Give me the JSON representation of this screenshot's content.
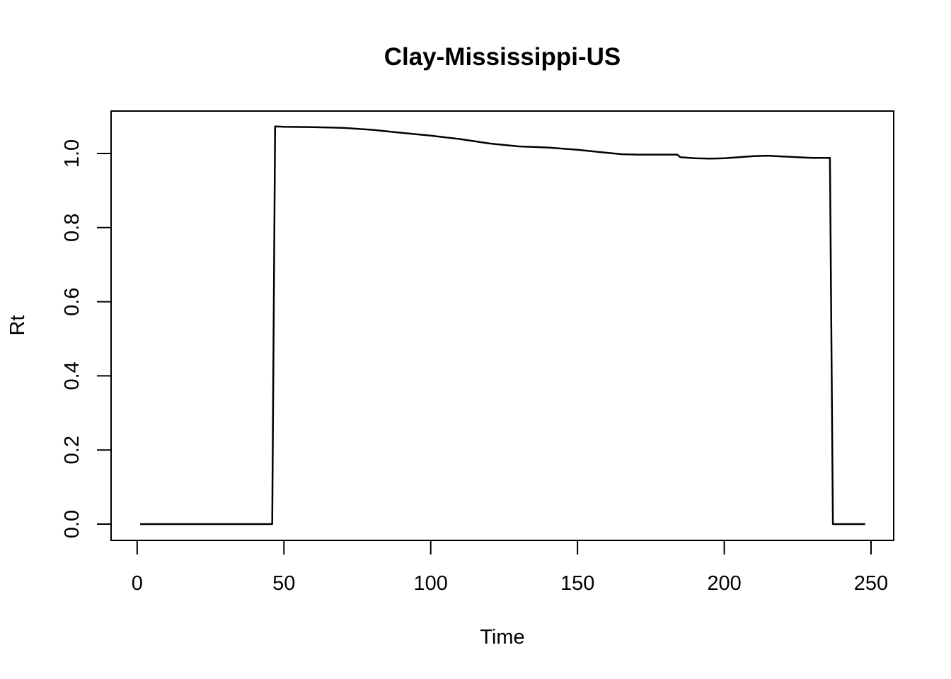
{
  "chart_data": {
    "type": "line",
    "title": "Clay-Mississippi-US",
    "xlabel": "Time",
    "ylabel": "Rt",
    "xlim": [
      1,
      248
    ],
    "ylim": [
      0,
      1.07
    ],
    "xticks": [
      0,
      50,
      100,
      150,
      200,
      250
    ],
    "yticks": [
      0.0,
      0.2,
      0.4,
      0.6,
      0.8,
      1.0
    ],
    "xtick_labels": [
      "0",
      "50",
      "100",
      "150",
      "200",
      "250"
    ],
    "ytick_labels": [
      "0.0",
      "0.2",
      "0.4",
      "0.6",
      "0.8",
      "1.0"
    ],
    "grid": false,
    "line_color": "#000000",
    "series": [
      {
        "x": [
          1,
          46,
          47,
          50,
          60,
          70,
          80,
          90,
          100,
          110,
          120,
          130,
          140,
          150,
          160,
          165,
          170,
          175,
          180,
          184,
          185,
          190,
          195,
          200,
          205,
          210,
          215,
          220,
          225,
          230,
          236,
          237,
          248
        ],
        "y": [
          0,
          0,
          1.073,
          1.072,
          1.071,
          1.069,
          1.064,
          1.056,
          1.048,
          1.039,
          1.027,
          1.019,
          1.016,
          1.01,
          1.002,
          0.998,
          0.997,
          0.997,
          0.997,
          0.997,
          0.99,
          0.987,
          0.986,
          0.987,
          0.99,
          0.993,
          0.994,
          0.992,
          0.99,
          0.988,
          0.988,
          0,
          0
        ]
      }
    ]
  }
}
